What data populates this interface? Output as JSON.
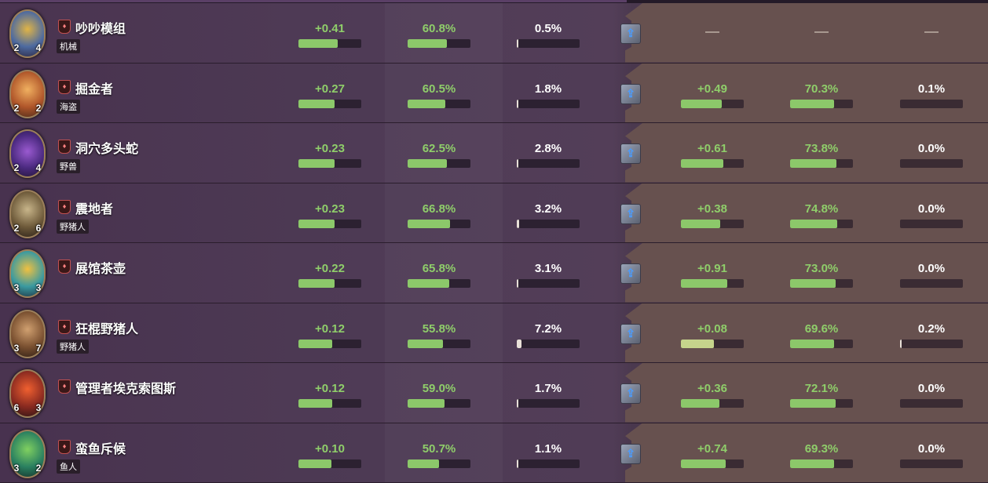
{
  "minions": [
    {
      "name": "吵吵模组",
      "tribe": "机械",
      "attack": "2",
      "health": "4",
      "left": {
        "delta": "+0.41",
        "delta_fill": 0.62,
        "winrate": "60.8%",
        "winrate_fill": 0.62,
        "pick": "0.5%",
        "pick_fill": 0.005
      },
      "right": null
    },
    {
      "name": "掘金者",
      "tribe": "海盗",
      "attack": "2",
      "health": "2",
      "left": {
        "delta": "+0.27",
        "delta_fill": 0.58,
        "winrate": "60.5%",
        "winrate_fill": 0.6,
        "pick": "1.8%",
        "pick_fill": 0.018
      },
      "right": {
        "delta": "+0.49",
        "delta_fill": 0.65,
        "winrate": "70.3%",
        "winrate_fill": 0.7,
        "pick": "0.1%"
      }
    },
    {
      "name": "洞穴多头蛇",
      "tribe": "野兽",
      "attack": "2",
      "health": "4",
      "left": {
        "delta": "+0.23",
        "delta_fill": 0.57,
        "winrate": "62.5%",
        "winrate_fill": 0.63,
        "pick": "2.8%",
        "pick_fill": 0.028
      },
      "right": {
        "delta": "+0.61",
        "delta_fill": 0.68,
        "winrate": "73.8%",
        "winrate_fill": 0.74,
        "pick": "0.0%"
      }
    },
    {
      "name": "震地者",
      "tribe": "野猪人",
      "attack": "2",
      "health": "6",
      "left": {
        "delta": "+0.23",
        "delta_fill": 0.57,
        "winrate": "66.8%",
        "winrate_fill": 0.67,
        "pick": "3.2%",
        "pick_fill": 0.032
      },
      "right": {
        "delta": "+0.38",
        "delta_fill": 0.62,
        "winrate": "74.8%",
        "winrate_fill": 0.75,
        "pick": "0.0%"
      }
    },
    {
      "name": "展馆茶壶",
      "tribe": "",
      "attack": "3",
      "health": "3",
      "left": {
        "delta": "+0.22",
        "delta_fill": 0.57,
        "winrate": "65.8%",
        "winrate_fill": 0.66,
        "pick": "3.1%",
        "pick_fill": 0.031
      },
      "right": {
        "delta": "+0.91",
        "delta_fill": 0.74,
        "winrate": "73.0%",
        "winrate_fill": 0.73,
        "pick": "0.0%"
      }
    },
    {
      "name": "狂棍野猪人",
      "tribe": "野猪人",
      "attack": "3",
      "health": "7",
      "left": {
        "delta": "+0.12",
        "delta_fill": 0.54,
        "winrate": "55.8%",
        "winrate_fill": 0.56,
        "pick": "7.2%",
        "pick_fill": 0.072
      },
      "right": {
        "delta": "+0.08",
        "delta_fill": 0.53,
        "winrate": "69.6%",
        "winrate_fill": 0.7,
        "pick": "0.2%"
      }
    },
    {
      "name": "管理者埃克索图斯",
      "tribe": "",
      "attack": "6",
      "health": "3",
      "left": {
        "delta": "+0.12",
        "delta_fill": 0.54,
        "winrate": "59.0%",
        "winrate_fill": 0.59,
        "pick": "1.7%",
        "pick_fill": 0.017
      },
      "right": {
        "delta": "+0.36",
        "delta_fill": 0.61,
        "winrate": "72.1%",
        "winrate_fill": 0.72,
        "pick": "0.0%"
      }
    },
    {
      "name": "蛮鱼斥候",
      "tribe": "鱼人",
      "attack": "3",
      "health": "2",
      "left": {
        "delta": "+0.10",
        "delta_fill": 0.53,
        "winrate": "50.7%",
        "winrate_fill": 0.5,
        "pick": "1.1%",
        "pick_fill": 0.011
      },
      "right": {
        "delta": "+0.74",
        "delta_fill": 0.71,
        "winrate": "69.3%",
        "winrate_fill": 0.7,
        "pick": "0.0%"
      }
    }
  ],
  "icons": {
    "tier": "tier-shield-icon",
    "swap": "card-swap-icon"
  },
  "colors": {
    "accent_green": "#8fce6a",
    "bar_bg": "#2c2131",
    "right_panel": "#67514f",
    "row_bg": "#4a3450"
  }
}
